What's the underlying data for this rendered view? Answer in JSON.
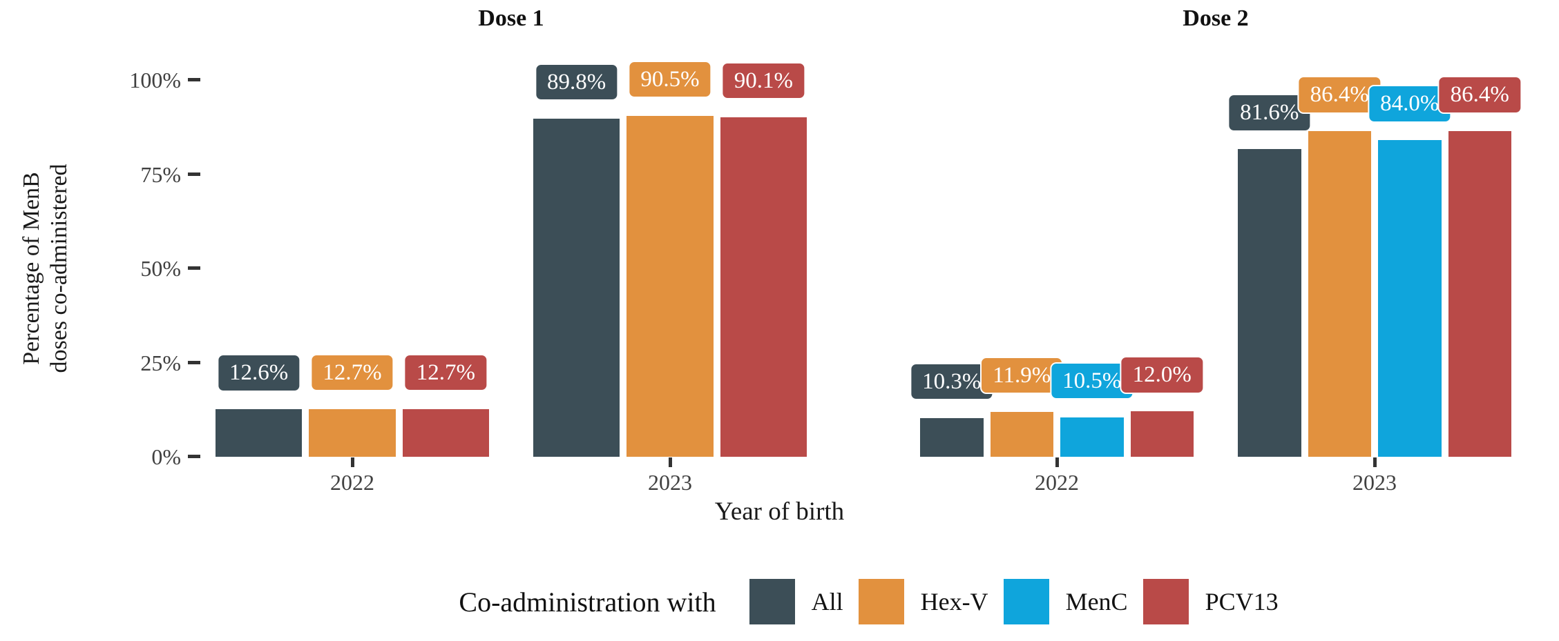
{
  "chart_data": {
    "type": "bar",
    "title": "",
    "xlabel": "Year of birth",
    "ylabel": "Percentage of MenB\ndoses co-administered",
    "ylim": [
      0,
      100
    ],
    "grid": false,
    "yticks": [
      {
        "label": "100%",
        "value": 100
      },
      {
        "label": "75%",
        "value": 75
      },
      {
        "label": "50%",
        "value": 50
      },
      {
        "label": "25%",
        "value": 25
      },
      {
        "label": "0%",
        "value": 0
      }
    ],
    "series_order": [
      "All",
      "Hex-V",
      "MenC",
      "PCV13"
    ],
    "series_colors": {
      "All": "#3C4E57",
      "Hex-V": "#E2913E",
      "MenC": "#0FA5DC",
      "PCV13": "#B94A48"
    },
    "value_suffix": "%",
    "facets": [
      {
        "label": "Dose 1",
        "categories": [
          "2022",
          "2023"
        ],
        "series": [
          {
            "name": "All",
            "values": [
              12.6,
              89.8
            ]
          },
          {
            "name": "Hex-V",
            "values": [
              12.7,
              90.5
            ]
          },
          {
            "name": "MenC",
            "values": [
              null,
              null
            ]
          },
          {
            "name": "PCV13",
            "values": [
              12.7,
              90.1
            ]
          }
        ]
      },
      {
        "label": "Dose 2",
        "categories": [
          "2022",
          "2023"
        ],
        "series": [
          {
            "name": "All",
            "values": [
              10.3,
              81.6
            ]
          },
          {
            "name": "Hex-V",
            "values": [
              11.9,
              86.4
            ]
          },
          {
            "name": "MenC",
            "values": [
              10.5,
              84.0
            ]
          },
          {
            "name": "PCV13",
            "values": [
              12.0,
              86.4
            ]
          }
        ]
      }
    ],
    "legend": {
      "position": "bottom",
      "title": "Co-administration with",
      "entries": [
        {
          "label": "All",
          "color": "#3C4E57"
        },
        {
          "label": "Hex-V",
          "color": "#E2913E"
        },
        {
          "label": "MenC",
          "color": "#0FA5DC"
        },
        {
          "label": "PCV13",
          "color": "#B94A48"
        }
      ]
    }
  }
}
